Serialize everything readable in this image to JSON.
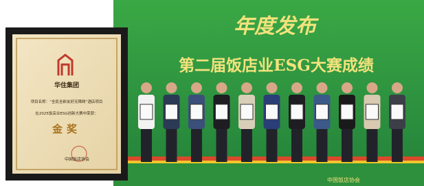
{
  "stage": {
    "headline": "年度发布",
    "title": "第二届饭店业ESG大赛成绩",
    "footer": "中国饭店协会"
  },
  "certificate": {
    "company": "华住集团",
    "project": "项目名称：“全民全龄友好无障碍”酒店项目",
    "event": "在2025饭店业ESG创新大赛中荣获：",
    "award": "金奖",
    "issuer": "中国饭店协会"
  }
}
